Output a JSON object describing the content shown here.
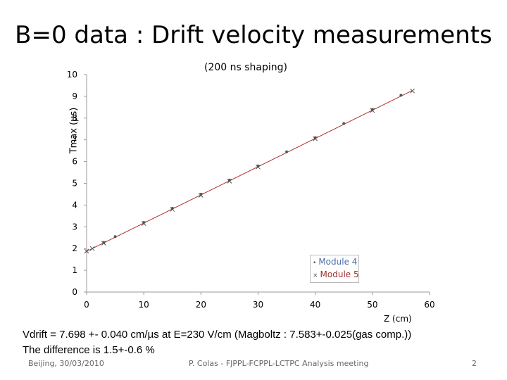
{
  "slide": {
    "title": "B=0 data : Drift velocity measurements",
    "footer_left": "Beijing, 30/03/2010",
    "footer_center": "P. Colas  -  FJPPL-FCPPL-LCTPC Analysis meeting",
    "page_number": "2",
    "note_line1": "Vdrift = 7.698 +- 0.040 cm/µs at E=230 V/cm (Magboltz : 7.583+-0.025(gas comp.))",
    "note_line2": "The difference is 1.5+-0.6 %"
  },
  "chart_data": {
    "type": "scatter",
    "title": "(200 ns shaping)",
    "xlabel": "Z (cm)",
    "ylabel": "Tmax (µs)",
    "xlim": [
      0,
      60
    ],
    "ylim": [
      0,
      10
    ],
    "xticks": [
      0,
      10,
      20,
      30,
      40,
      50,
      60
    ],
    "yticks": [
      0,
      1,
      2,
      3,
      4,
      5,
      6,
      7,
      8,
      9,
      10
    ],
    "grid": false,
    "legend_position": "bottom-right",
    "series": [
      {
        "name": "Module 4",
        "marker": "dot",
        "color": "#555555",
        "x": [
          3,
          5,
          10,
          15,
          20,
          25,
          30,
          35,
          40,
          45,
          50,
          55
        ],
        "y": [
          2.28,
          2.55,
          3.2,
          3.85,
          4.5,
          5.15,
          5.8,
          6.45,
          7.1,
          7.75,
          8.4,
          9.05
        ]
      },
      {
        "name": "Module 5",
        "marker": "x",
        "color": "#555555",
        "x": [
          0,
          1,
          3,
          10,
          15,
          20,
          25,
          30,
          40,
          50,
          57
        ],
        "y": [
          1.88,
          2.0,
          2.25,
          3.15,
          3.8,
          4.45,
          5.1,
          5.75,
          7.05,
          8.35,
          9.25
        ]
      }
    ],
    "fit_line": {
      "color": "#b03030",
      "x": [
        0,
        57
      ],
      "y": [
        1.87,
        9.27
      ]
    }
  }
}
